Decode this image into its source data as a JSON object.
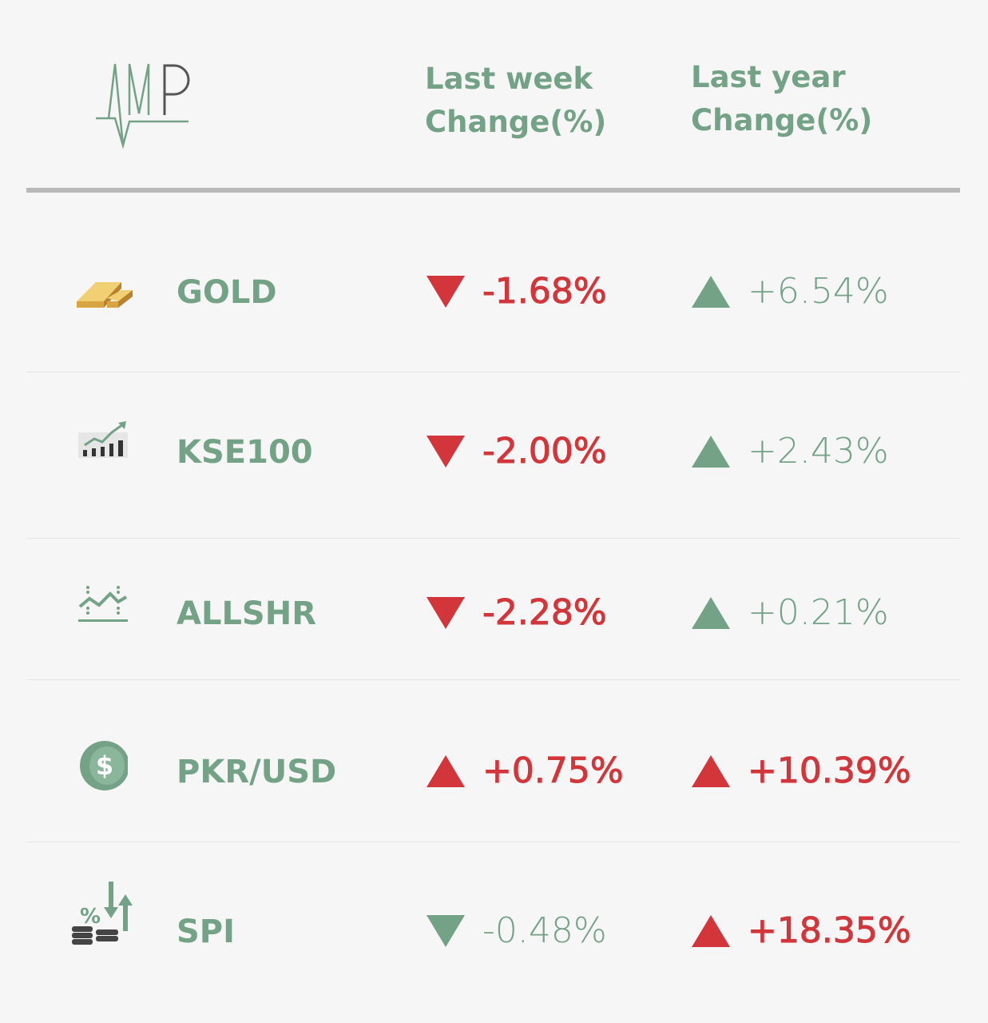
{
  "logo": "MP",
  "headers": {
    "week": [
      "Last week",
      "Change(%)"
    ],
    "year": [
      "Last year",
      "Change(%)"
    ]
  },
  "colors": {
    "green": "#73a286",
    "red": "#d2363a"
  },
  "rows": [
    {
      "name": "GOLD",
      "icon": "gold-bar-icon",
      "week": "-1.68%",
      "week_dir": "down",
      "week_color": "red",
      "year": "+6.54%",
      "year_dir": "up",
      "year_color": "green"
    },
    {
      "name": "KSE100",
      "icon": "bar-chart-growth-icon",
      "week": "-2.00%",
      "week_dir": "down",
      "week_color": "red",
      "year": "+2.43%",
      "year_dir": "up",
      "year_color": "green"
    },
    {
      "name": "ALLSHR",
      "icon": "line-chart-icon",
      "week": "-2.28%",
      "week_dir": "down",
      "week_color": "red",
      "year": "+0.21%",
      "year_dir": "up",
      "year_color": "green"
    },
    {
      "name": "PKR/USD",
      "icon": "dollar-coin-icon",
      "week": "+0.75%",
      "week_dir": "up",
      "week_color": "red",
      "year": "+10.39%",
      "year_dir": "up",
      "year_color": "red"
    },
    {
      "name": "SPI",
      "icon": "coins-percent-icon",
      "week": "-0.48%",
      "week_dir": "down",
      "week_color": "green",
      "year": "+18.35%",
      "year_dir": "up",
      "year_color": "red"
    }
  ]
}
